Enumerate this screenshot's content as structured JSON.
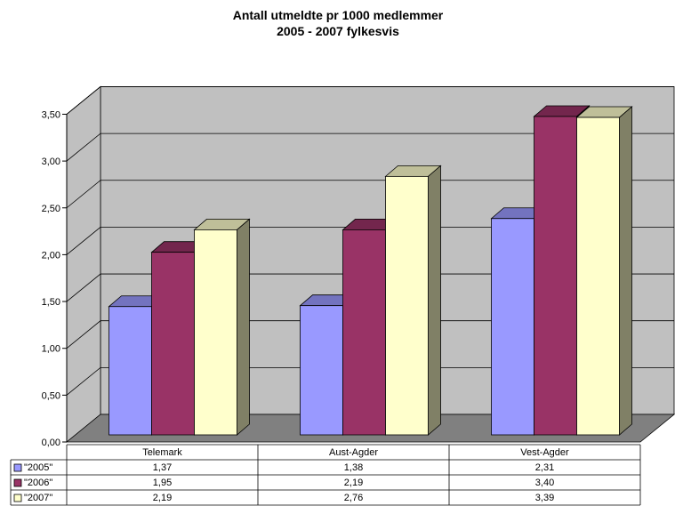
{
  "chart_data": {
    "type": "bar",
    "title": "Antall utmeldte pr 1000 medlemmer",
    "subtitle": "2005 - 2007 fylkesvis",
    "categories": [
      "Telemark",
      "Aust-Agder",
      "Vest-Agder"
    ],
    "series": [
      {
        "name": "\"2005\"",
        "values": [
          1.37,
          1.38,
          2.31
        ],
        "labels": [
          "1,37",
          "1,38",
          "2,31"
        ],
        "color": "#9999ff"
      },
      {
        "name": "\"2006\"",
        "values": [
          1.95,
          2.19,
          3.4
        ],
        "labels": [
          "1,95",
          "2,19",
          "3,40"
        ],
        "color": "#993366"
      },
      {
        "name": "\"2007\"",
        "values": [
          2.19,
          2.76,
          3.39
        ],
        "labels": [
          "2,19",
          "2,76",
          "3,39"
        ],
        "color": "#ffffcc"
      }
    ],
    "ylim": [
      0,
      3.5
    ],
    "yticks": [
      "0,00",
      "0,50",
      "1,00",
      "1,50",
      "2,00",
      "2,50",
      "3,00",
      "3,50"
    ],
    "grid": true,
    "legend": "data-table-below",
    "view": "3d"
  }
}
